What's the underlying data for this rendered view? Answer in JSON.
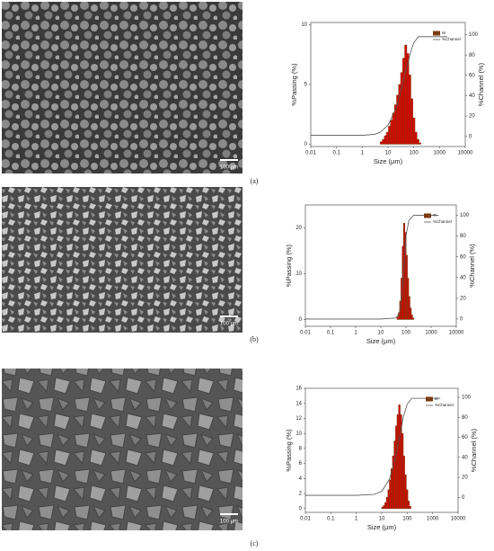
{
  "panels": [
    {
      "label": "(a)",
      "scale_bar": "100 μm"
    },
    {
      "label": "(b)",
      "scale_bar": "100 μm"
    },
    {
      "label": "(c)",
      "scale_bar": "100 μm"
    }
  ],
  "chart_data": [
    {
      "type": "histogram",
      "x_label": "Size (μm)",
      "y_label": "%Passing (%)",
      "y2_label": "%Channel (%)",
      "xscale": "log",
      "xlim": [
        0.01,
        10000
      ],
      "xticks": [
        0.01,
        0.1,
        1,
        10,
        100,
        1000,
        10000
      ],
      "ylim": [
        -0.2,
        10.2
      ],
      "yticks": [
        0,
        5,
        10
      ],
      "y2lim": [
        -10,
        112
      ],
      "y2ticks": [
        0,
        20,
        40,
        60,
        80,
        100
      ],
      "legend": "upper right",
      "edgecolor": "#7a3b10",
      "bins": [
        5,
        6,
        7.2,
        8.6,
        10.4,
        12.4,
        14.9,
        17.9,
        21.5,
        25.8,
        31,
        37,
        44.6,
        53.5,
        64,
        77,
        92,
        111,
        133,
        160,
        192
      ],
      "series": [
        {
          "name": "Ni",
          "color": "#e00000",
          "values": [
            0.2,
            0.4,
            0.7,
            1.0,
            1.5,
            2.0,
            2.6,
            3.3,
            4.1,
            5.0,
            6.0,
            7.2,
            8.3,
            7.6,
            5.8,
            3.8,
            2.2,
            1.0,
            0.4,
            0.1
          ]
        },
        {
          "name": "%Channel",
          "color": "#555555",
          "type": "line",
          "axis": "y2",
          "x": [
            0.01,
            1,
            3,
            5,
            10,
            20,
            30,
            50,
            80,
            100,
            150,
            1000,
            2000
          ],
          "values": [
            1,
            1,
            2,
            4,
            11,
            27,
            42,
            65,
            85,
            92,
            98,
            98,
            98
          ]
        }
      ]
    },
    {
      "type": "histogram",
      "x_label": "Size (μm)",
      "y_label": "%Passing (%)",
      "y2_label": "%Channel (%)",
      "xscale": "log",
      "xlim": [
        0.01,
        10000
      ],
      "xticks": [
        0.01,
        0.1,
        1,
        10,
        100,
        1000,
        10000
      ],
      "ylim": [
        -1.5,
        25
      ],
      "yticks": [
        0,
        10,
        20
      ],
      "y2lim": [
        -7,
        110
      ],
      "y2ticks": [
        0,
        20,
        40,
        60,
        80,
        100
      ],
      "legend": "upper right",
      "edgecolor": "#7a3b10",
      "bins": [
        44,
        50,
        56,
        63,
        71,
        80,
        90,
        101,
        114,
        128,
        144,
        162,
        182,
        205
      ],
      "series": [
        {
          "name": "Ti",
          "color": "#e00000",
          "values": [
            0.5,
            1.5,
            4,
            9,
            16,
            21,
            19,
            14,
            9,
            5,
            2.5,
            1,
            0.3
          ]
        },
        {
          "name": "%Channel",
          "color": "#555555",
          "type": "line",
          "axis": "y2",
          "x": [
            0.01,
            10,
            40,
            55,
            70,
            85,
            100,
            130,
            200,
            2000
          ],
          "values": [
            0,
            0,
            1,
            6,
            25,
            55,
            80,
            95,
            100,
            100
          ]
        }
      ]
    },
    {
      "type": "histogram",
      "x_label": "Size (μm)",
      "y_label": "%Passing (%)",
      "y2_label": "%Channel (%)",
      "xscale": "log",
      "xlim": [
        0.01,
        10000
      ],
      "xticks": [
        0.01,
        0.1,
        1,
        10,
        100,
        1000,
        10000
      ],
      "ylim": [
        -0.5,
        16
      ],
      "yticks": [
        0,
        2,
        4,
        6,
        8,
        10,
        12,
        14,
        16
      ],
      "y2lim": [
        -15,
        109
      ],
      "y2ticks": [
        0,
        20,
        40,
        60,
        80,
        100
      ],
      "legend": "upper right",
      "edgecolor": "#7a3b10",
      "bins": [
        10,
        11.5,
        13.2,
        15.2,
        17.5,
        20,
        23,
        26.5,
        30.5,
        35,
        40,
        46,
        53,
        61,
        70,
        80,
        92,
        106,
        122,
        140
      ],
      "series": [
        {
          "name": "Zr",
          "color": "#e00000",
          "values": [
            0.2,
            0.4,
            0.8,
            1.5,
            2.5,
            3.8,
            5.3,
            7,
            9,
            11,
            12.5,
            13.8,
            12.5,
            10,
            7,
            4.5,
            2.5,
            1,
            0.3
          ]
        },
        {
          "name": "%Channel",
          "color": "#555555",
          "type": "line",
          "axis": "y2",
          "x": [
            0.01,
            1,
            5,
            10,
            20,
            30,
            50,
            70,
            100,
            150,
            2000
          ],
          "values": [
            2,
            2,
            3,
            6,
            18,
            33,
            60,
            80,
            93,
            99,
            99
          ]
        }
      ]
    }
  ]
}
